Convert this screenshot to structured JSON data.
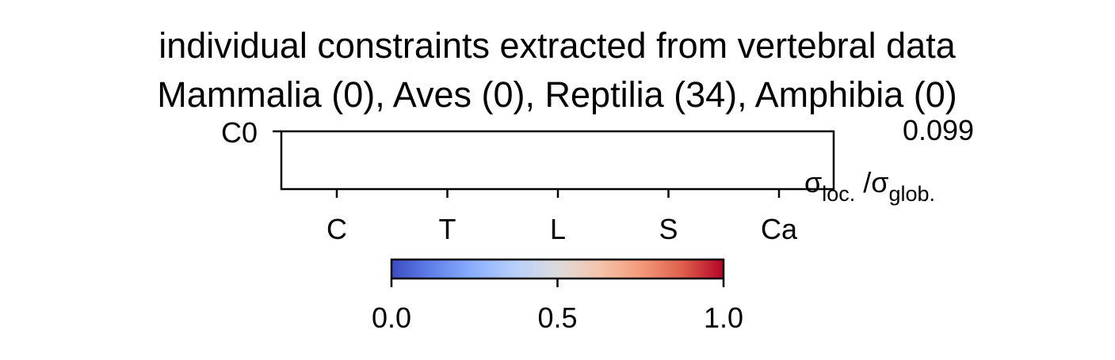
{
  "chart_data": {
    "type": "heatmap",
    "title": "individual constraints extracted from vertebral data",
    "subtitle": "Mammalia (0), Aves (0), Reptilia (34), Amphibia (0)",
    "rows": [
      "C0"
    ],
    "columns": [
      "C",
      "T",
      "L",
      "S",
      "Ca"
    ],
    "values": [
      [
        null,
        null,
        null,
        null,
        null
      ]
    ],
    "row_value_labels": [
      "0.099"
    ],
    "ratio_label": {
      "sigma": "σ",
      "loc_sub": "loc.",
      "separator": " /",
      "glob_sub": "glob."
    },
    "colorbar": {
      "colormap": "coolwarm",
      "range": [
        0.0,
        1.0
      ],
      "ticks": [
        0.0,
        0.5,
        1.0
      ],
      "tick_labels": [
        "0.0",
        "0.5",
        "1.0"
      ],
      "stops": [
        "#3b4cc0",
        "#6282ea",
        "#8db0fe",
        "#b8d0f9",
        "#dddcdc",
        "#f5c4ac",
        "#f49a7b",
        "#de604d",
        "#b40426"
      ]
    },
    "grid": false
  }
}
